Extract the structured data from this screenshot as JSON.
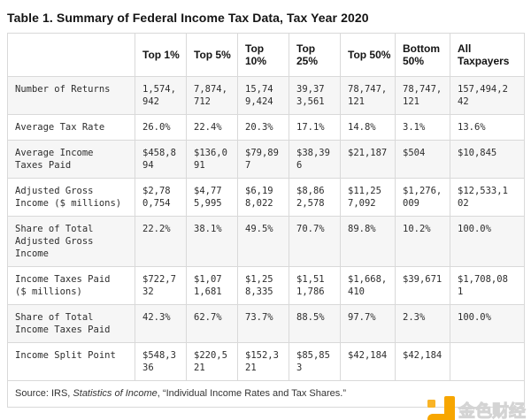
{
  "title": "Table 1. Summary of Federal Income Tax Data, Tax Year 2020",
  "table": {
    "columns": [
      "Top 1%",
      "Top 5%",
      "Top 10%",
      "Top 25%",
      "Top 50%",
      "Bottom 50%",
      "All Taxpayers"
    ],
    "rows": [
      {
        "label": "Number of Returns",
        "values": [
          "1,574,942",
          "7,874,712",
          "15,749,424",
          "39,373,561",
          "78,747,121",
          "78,747,121",
          "157,494,242"
        ]
      },
      {
        "label": "Average Tax Rate",
        "values": [
          "26.0%",
          "22.4%",
          "20.3%",
          "17.1%",
          "14.8%",
          "3.1%",
          "13.6%"
        ]
      },
      {
        "label": "Average Income Taxes Paid",
        "values": [
          "$458,894",
          "$136,091",
          "$79,897",
          "$38,396",
          "$21,187",
          "$504",
          "$10,845"
        ]
      },
      {
        "label": "Adjusted Gross Income ($ millions)",
        "values": [
          "$2,780,754",
          "$4,775,995",
          "$6,198,022",
          "$8,862,578",
          "$11,257,092",
          "$1,276,009",
          "$12,533,102"
        ]
      },
      {
        "label": "Share of Total Adjusted Gross Income",
        "values": [
          "22.2%",
          "38.1%",
          "49.5%",
          "70.7%",
          "89.8%",
          "10.2%",
          "100.0%"
        ]
      },
      {
        "label": "Income Taxes Paid ($ millions)",
        "values": [
          "$722,732",
          "$1,071,681",
          "$1,258,335",
          "$1,511,786",
          "$1,668,410",
          "$39,671",
          "$1,708,081"
        ]
      },
      {
        "label": "Share of Total Income Taxes Paid",
        "values": [
          "42.3%",
          "62.7%",
          "73.7%",
          "88.5%",
          "97.7%",
          "2.3%",
          "100.0%"
        ]
      },
      {
        "label": "Income Split Point",
        "values": [
          "$548,336",
          "$220,521",
          "$152,321",
          "$85,853",
          "$42,184",
          "$42,184",
          ""
        ]
      }
    ],
    "source": {
      "prefix": "Source: IRS, ",
      "italic": "Statistics of Income",
      "suffix": ", “Individual Income Rates and Tax Shares.”"
    }
  },
  "watermark": {
    "text": "金色财经",
    "logo_color": "#F7A600",
    "logo_color_light": "#F9B427"
  }
}
